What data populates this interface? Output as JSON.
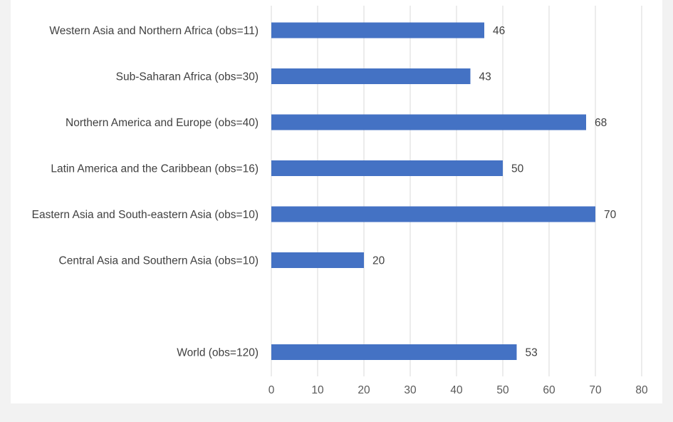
{
  "chart_data": {
    "type": "bar",
    "orientation": "horizontal",
    "categories": [
      "Western Asia and Northern Africa (obs=11)",
      "Sub-Saharan Africa (obs=30)",
      "Northern America and Europe (obs=40)",
      "Latin America and the Caribbean (obs=16)",
      "Eastern Asia and South-eastern Asia (obs=10)",
      "Central Asia and Southern Asia (obs=10)",
      "",
      "World (obs=120)"
    ],
    "values": [
      46,
      43,
      68,
      50,
      70,
      20,
      null,
      53
    ],
    "data_labels": [
      "46",
      "43",
      "68",
      "50",
      "70",
      "20",
      "",
      "53"
    ],
    "x_ticks": [
      "0",
      "10",
      "20",
      "30",
      "40",
      "50",
      "60",
      "70",
      "80"
    ],
    "xlim": [
      0,
      80
    ],
    "title": "",
    "xlabel": "",
    "ylabel": "",
    "grid": "vertical",
    "legend": "none",
    "bar_color": "#4472c4",
    "grid_color": "#d9d9d9",
    "text_color": "#404040"
  }
}
